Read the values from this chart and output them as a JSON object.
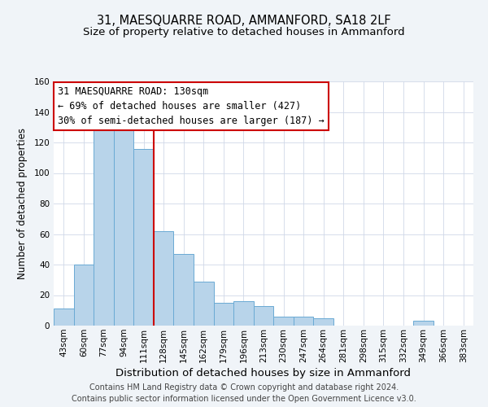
{
  "title": "31, MAESQUARRE ROAD, AMMANFORD, SA18 2LF",
  "subtitle": "Size of property relative to detached houses in Ammanford",
  "xlabel": "Distribution of detached houses by size in Ammanford",
  "ylabel": "Number of detached properties",
  "bar_labels": [
    "43sqm",
    "60sqm",
    "77sqm",
    "94sqm",
    "111sqm",
    "128sqm",
    "145sqm",
    "162sqm",
    "179sqm",
    "196sqm",
    "213sqm",
    "230sqm",
    "247sqm",
    "264sqm",
    "281sqm",
    "298sqm",
    "315sqm",
    "332sqm",
    "349sqm",
    "366sqm",
    "383sqm"
  ],
  "bar_values": [
    11,
    40,
    128,
    128,
    116,
    62,
    47,
    29,
    15,
    16,
    13,
    6,
    6,
    5,
    0,
    0,
    0,
    0,
    3,
    0,
    0
  ],
  "bar_color": "#b8d4ea",
  "bar_edge_color": "#6aaad4",
  "vline_index": 5,
  "vline_color": "#cc0000",
  "ylim": [
    0,
    160
  ],
  "annotation_title": "31 MAESQUARRE ROAD: 130sqm",
  "annotation_line1": "← 69% of detached houses are smaller (427)",
  "annotation_line2": "30% of semi-detached houses are larger (187) →",
  "annotation_box_color": "#ffffff",
  "annotation_box_edge": "#cc0000",
  "footer_line1": "Contains HM Land Registry data © Crown copyright and database right 2024.",
  "footer_line2": "Contains public sector information licensed under the Open Government Licence v3.0.",
  "background_color": "#f0f4f8",
  "plot_background": "#ffffff",
  "grid_color": "#d0d8e8",
  "title_fontsize": 10.5,
  "subtitle_fontsize": 9.5,
  "xlabel_fontsize": 9.5,
  "ylabel_fontsize": 8.5,
  "tick_fontsize": 7.5,
  "annotation_fontsize": 8.5,
  "footer_fontsize": 7.0
}
